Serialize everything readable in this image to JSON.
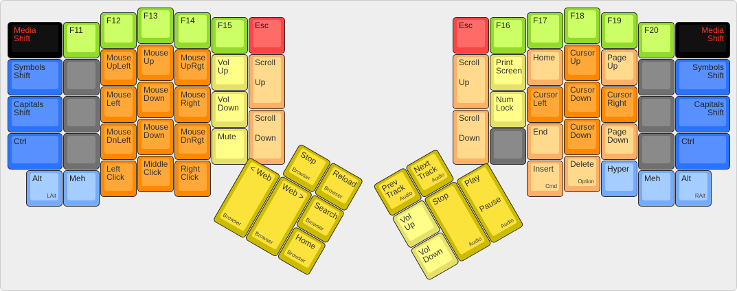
{
  "palette": {
    "black": {
      "outer": "#000000",
      "inner": "#111111",
      "text": "#ff3322"
    },
    "blue": {
      "outer": "#2a73ff",
      "inner": "#5990ff",
      "text": "#222222"
    },
    "grey": {
      "outer": "#707070",
      "inner": "#8a8a8a",
      "text": "#222222"
    },
    "green": {
      "outer": "#92da2c",
      "inner": "#ccff66",
      "text": "#222222"
    },
    "red": {
      "outer": "#ff4444",
      "inner": "#ff6b66",
      "text": "#222222"
    },
    "orange": {
      "outer": "#ff8800",
      "inner": "#ffa838",
      "text": "#333333"
    },
    "peach": {
      "outer": "#ffb066",
      "inner": "#ffd98c",
      "text": "#333333"
    },
    "ltyellow": {
      "outer": "#e5e06a",
      "inner": "#ffff88",
      "text": "#333333"
    },
    "ltblue": {
      "outer": "#77aaff",
      "inner": "#a5cdff",
      "text": "#222222"
    },
    "yellow": {
      "outer": "#cdbb00",
      "inner": "#fbe33c",
      "text": "#333333"
    }
  },
  "left_hand": {
    "keys": [
      {
        "top": "Media\nShift",
        "color": "black"
      },
      {
        "top": "Symbols\nShift",
        "color": "blue"
      },
      {
        "top": "Capitals\nShift",
        "color": "blue"
      },
      {
        "top": "Ctrl",
        "color": "blue"
      },
      {
        "top": "Alt",
        "sub": "LAlt",
        "color": "ltblue"
      },
      {
        "top": "F11",
        "color": "green"
      },
      {
        "top": "",
        "color": "grey"
      },
      {
        "top": "",
        "color": "grey"
      },
      {
        "top": "",
        "color": "grey"
      },
      {
        "top": "Meh",
        "color": "ltblue"
      },
      {
        "top": "F12",
        "color": "green"
      },
      {
        "top": "Mouse\nUpLeft",
        "color": "orange"
      },
      {
        "top": "Mouse\nLeft",
        "color": "orange"
      },
      {
        "top": "Mouse\nDnLeft",
        "color": "orange"
      },
      {
        "top": "Left\nClick",
        "color": "orange"
      },
      {
        "top": "F13",
        "color": "green"
      },
      {
        "top": "Mouse\nUp",
        "color": "orange"
      },
      {
        "top": "Mouse\nDown",
        "color": "orange"
      },
      {
        "top": "Mouse\nDown",
        "color": "orange"
      },
      {
        "top": "Middle\nClick",
        "color": "orange"
      },
      {
        "top": "F14",
        "color": "green"
      },
      {
        "top": "Mouse\nUpRgt",
        "color": "orange"
      },
      {
        "top": "Mouse\nRight",
        "color": "orange"
      },
      {
        "top": "Mouse\nDnRgt",
        "color": "orange"
      },
      {
        "top": "Right\nClick",
        "color": "orange"
      },
      {
        "top": "F15",
        "color": "green"
      },
      {
        "top": "Vol\nUp",
        "color": "ltyellow"
      },
      {
        "top": "Vol\nDown",
        "color": "ltyellow"
      },
      {
        "top": "Mute",
        "color": "ltyellow"
      },
      {
        "top": "Esc",
        "color": "red"
      },
      {
        "top": "Scroll",
        "mid": "Up",
        "color": "peach"
      },
      {
        "top": "Scroll",
        "mid": "Down",
        "color": "peach"
      }
    ]
  },
  "left_thumb": {
    "keys": [
      {
        "top": "Stop",
        "sub": "Browser",
        "color": "yellow"
      },
      {
        "top": "Reload",
        "sub": "Browser",
        "color": "yellow"
      },
      {
        "top": "< Web",
        "sub": "Browser",
        "color": "yellow"
      },
      {
        "top": "Web >",
        "sub": "Browser",
        "color": "yellow"
      },
      {
        "top": "Search",
        "sub": "Browser",
        "color": "yellow"
      },
      {
        "top": "Home",
        "sub": "Browser",
        "color": "yellow"
      }
    ]
  },
  "right_hand": {
    "keys": [
      {
        "top": "Esc",
        "color": "red"
      },
      {
        "top": "Scroll",
        "mid": "Up",
        "color": "peach"
      },
      {
        "top": "Scroll",
        "mid": "Down",
        "color": "peach"
      },
      {
        "top": "F16",
        "color": "green"
      },
      {
        "top": "Print\nScreen",
        "color": "ltyellow"
      },
      {
        "top": "Num\nLock",
        "color": "ltyellow"
      },
      {
        "top": "",
        "color": "grey"
      },
      {
        "top": "F17",
        "color": "green"
      },
      {
        "top": "Home",
        "color": "peach"
      },
      {
        "top": "Cursor\nLeft",
        "color": "orange"
      },
      {
        "top": "End",
        "color": "peach"
      },
      {
        "top": "Insert",
        "sub": "Cmd",
        "color": "peach"
      },
      {
        "top": "F18",
        "color": "green"
      },
      {
        "top": "Cursor\nUp",
        "color": "orange"
      },
      {
        "top": "Cursor\nDown",
        "color": "orange"
      },
      {
        "top": "Cursor\nDown",
        "color": "orange"
      },
      {
        "top": "Delete",
        "sub": "Option",
        "color": "peach"
      },
      {
        "top": "F19",
        "color": "green"
      },
      {
        "top": "Page\nUp",
        "color": "peach"
      },
      {
        "top": "Cursor\nRight",
        "color": "orange"
      },
      {
        "top": "Page\nDown",
        "color": "peach"
      },
      {
        "top": "Hyper",
        "color": "ltblue"
      },
      {
        "top": "F20",
        "color": "green"
      },
      {
        "top": "",
        "color": "grey"
      },
      {
        "top": "",
        "color": "grey"
      },
      {
        "top": "",
        "color": "grey"
      },
      {
        "top": "Meh",
        "color": "ltblue"
      },
      {
        "top": "Media\nShift",
        "color": "black",
        "align": "right"
      },
      {
        "top": "Symbols\nShift",
        "color": "blue",
        "align": "right"
      },
      {
        "top": "Capitals\nShift",
        "color": "blue",
        "align": "right"
      },
      {
        "top": "Ctrl",
        "color": "blue"
      },
      {
        "top": "Alt",
        "sub": "RAlt",
        "color": "ltblue"
      }
    ]
  },
  "right_thumb": {
    "keys": [
      {
        "top": "Prev\nTrack",
        "sub": "Audio",
        "color": "yellow"
      },
      {
        "top": "Next\nTrack",
        "sub": "Audio",
        "color": "yellow"
      },
      {
        "top": "Vol\nUp",
        "color": "ltyellow"
      },
      {
        "top": "Vol\nDown",
        "color": "ltyellow"
      },
      {
        "top": "Stop",
        "sub": "Audio",
        "color": "yellow"
      },
      {
        "top": "Play",
        "mid": "Pause",
        "sub": "Audio",
        "color": "yellow"
      }
    ]
  }
}
